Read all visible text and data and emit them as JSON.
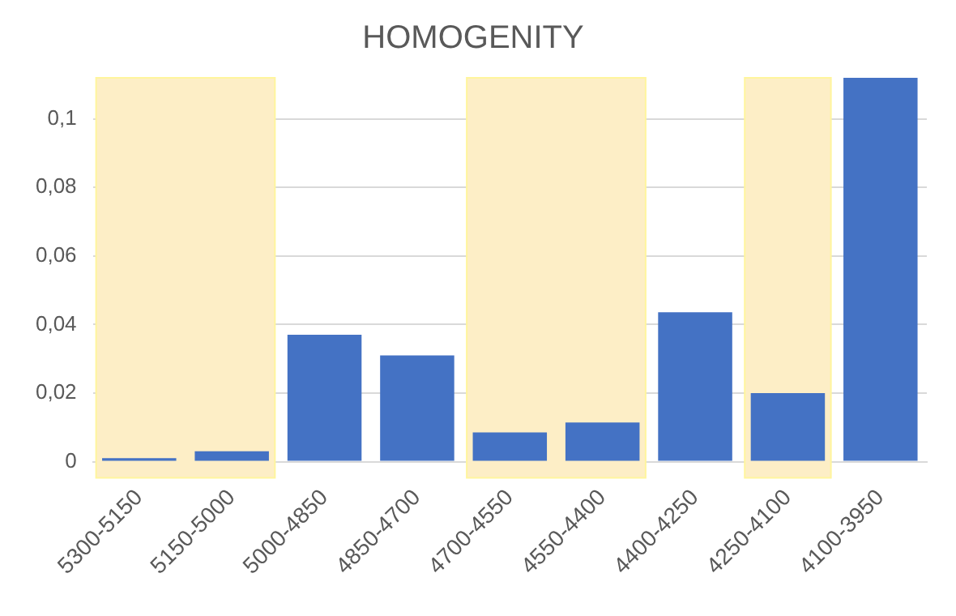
{
  "chart_data": {
    "type": "bar",
    "title": "HOMOGENITY",
    "categories": [
      "5300-5150",
      "5150-5000",
      "5000-4850",
      "4850-4700",
      "4700-4550",
      "4550-4400",
      "4400-4250",
      "4250-4100",
      "4100-3950"
    ],
    "values": [
      0.001,
      0.003,
      0.037,
      0.031,
      0.0085,
      0.0114,
      0.0436,
      0.02,
      0.112
    ],
    "color": "#4472c4",
    "ylim": [
      0,
      0.112
    ],
    "yticks": [
      {
        "value": 0,
        "label": "0"
      },
      {
        "value": 0.02,
        "label": "0,02"
      },
      {
        "value": 0.04,
        "label": "0,04"
      },
      {
        "value": 0.06,
        "label": "0,06"
      },
      {
        "value": 0.08,
        "label": "0,08"
      },
      {
        "value": 0.1,
        "label": "0,1"
      }
    ],
    "bands": [
      {
        "axis": "x",
        "from": "5300-5150",
        "to": "5150-5000",
        "color": "#fdeec6"
      },
      {
        "axis": "x",
        "from": "4700-4550",
        "to": "4550-4400",
        "color": "#fdeec6"
      },
      {
        "axis": "x",
        "from": "4250-4100",
        "to": "4250-4100",
        "color": "#fdeec6"
      }
    ],
    "grid": "y",
    "legend": false
  }
}
